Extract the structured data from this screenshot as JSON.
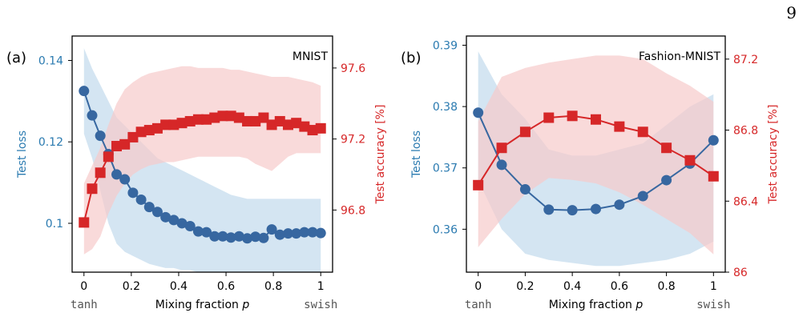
{
  "page_number": "9",
  "colors": {
    "loss": "#3767a0",
    "loss_text": "#2a7ab0",
    "loss_band": "#c6dcee",
    "acc": "#d62728",
    "acc_band": "#f6caca"
  },
  "chart_data": [
    {
      "type": "line",
      "panel_label": "(a)",
      "title": "MNIST",
      "xlabel": "Mixing fraction p",
      "ylabel_left": "Test loss",
      "ylabel_right": "Test accuracy [%]",
      "x_end_labels": {
        "left": "tanh",
        "right": "swish"
      },
      "xlim": [
        -0.05,
        1.05
      ],
      "xticks": [
        0,
        0.2,
        0.4,
        0.6,
        0.8,
        1
      ],
      "xtick_labels": [
        "0",
        "0.2",
        "0.4",
        "0.6",
        "0.8",
        "1"
      ],
      "ylim_left": [
        0.088,
        0.146
      ],
      "yticks_left": [
        0.1,
        0.12,
        0.14
      ],
      "ytick_labels_left": [
        "0.1",
        "0.12",
        "0.14"
      ],
      "ylim_right": [
        96.45,
        97.78
      ],
      "yticks_right": [
        96.8,
        97.2,
        97.6
      ],
      "ytick_labels_right": [
        "96.8",
        "97.2",
        "97.6"
      ],
      "x": [
        0,
        0.0345,
        0.069,
        0.1034,
        0.1379,
        0.1724,
        0.2069,
        0.2414,
        0.2759,
        0.3103,
        0.3448,
        0.3793,
        0.4138,
        0.4483,
        0.4828,
        0.5172,
        0.5517,
        0.5862,
        0.6207,
        0.6552,
        0.6897,
        0.7241,
        0.7586,
        0.7931,
        0.8276,
        0.8621,
        0.8966,
        0.931,
        0.9655,
        1
      ],
      "series": [
        {
          "axis": "left",
          "marker": "circle",
          "values": [
            0.1325,
            0.1265,
            0.1215,
            0.117,
            0.112,
            0.1108,
            0.1075,
            0.1058,
            0.104,
            0.1028,
            0.1015,
            0.1008,
            0.1,
            0.0993,
            0.098,
            0.0978,
            0.0968,
            0.0968,
            0.0965,
            0.0968,
            0.0963,
            0.0967,
            0.0964,
            0.0985,
            0.0972,
            0.0975,
            0.0975,
            0.0978,
            0.0978,
            0.0976
          ],
          "band_lower": [
            0.122,
            0.116,
            0.108,
            0.1,
            0.095,
            0.093,
            0.092,
            0.091,
            0.09,
            0.0895,
            0.089,
            0.089,
            0.0885,
            0.0885,
            0.088,
            0.088,
            0.088,
            0.088,
            0.088,
            0.088,
            0.088,
            0.088,
            0.088,
            0.088,
            0.088,
            0.088,
            0.088,
            0.088,
            0.088,
            0.088
          ],
          "band_upper": [
            0.143,
            0.138,
            0.134,
            0.13,
            0.126,
            0.124,
            0.122,
            0.12,
            0.118,
            0.116,
            0.115,
            0.114,
            0.113,
            0.112,
            0.111,
            0.11,
            0.109,
            0.108,
            0.107,
            0.1065,
            0.106,
            0.106,
            0.106,
            0.106,
            0.106,
            0.106,
            0.106,
            0.106,
            0.106,
            0.106
          ]
        },
        {
          "axis": "right",
          "marker": "square",
          "values": [
            96.73,
            96.92,
            97.01,
            97.1,
            97.16,
            97.17,
            97.21,
            97.24,
            97.25,
            97.26,
            97.28,
            97.28,
            97.29,
            97.3,
            97.31,
            97.31,
            97.32,
            97.33,
            97.33,
            97.32,
            97.3,
            97.3,
            97.32,
            97.28,
            97.3,
            97.28,
            97.29,
            97.27,
            97.25,
            97.26
          ],
          "band_lower": [
            96.55,
            96.58,
            96.65,
            96.78,
            96.88,
            96.95,
            97.0,
            97.03,
            97.05,
            97.06,
            97.07,
            97.07,
            97.08,
            97.09,
            97.1,
            97.1,
            97.1,
            97.1,
            97.1,
            97.1,
            97.09,
            97.06,
            97.04,
            97.02,
            97.06,
            97.1,
            97.12,
            97.12,
            97.12,
            97.12
          ],
          "band_upper": [
            96.95,
            97.05,
            97.15,
            97.28,
            97.4,
            97.48,
            97.52,
            97.55,
            97.57,
            97.58,
            97.59,
            97.6,
            97.61,
            97.61,
            97.6,
            97.6,
            97.6,
            97.6,
            97.59,
            97.59,
            97.58,
            97.57,
            97.56,
            97.55,
            97.55,
            97.55,
            97.54,
            97.53,
            97.52,
            97.5
          ]
        }
      ]
    },
    {
      "type": "line",
      "panel_label": "(b)",
      "title": "Fashion-MNIST",
      "xlabel": "Mixing fraction p",
      "ylabel_left": "Test loss",
      "ylabel_right": "Test accuracy [%]",
      "x_end_labels": {
        "left": "tanh",
        "right": "swish"
      },
      "xlim": [
        -0.05,
        1.05
      ],
      "xticks": [
        0,
        0.2,
        0.4,
        0.6,
        0.8,
        1
      ],
      "xtick_labels": [
        "0",
        "0.2",
        "0.4",
        "0.6",
        "0.8",
        "1"
      ],
      "ylim_left": [
        0.353,
        0.3915
      ],
      "yticks_left": [
        0.36,
        0.37,
        0.38,
        0.39
      ],
      "ytick_labels_left": [
        "0.36",
        "0.37",
        "0.38",
        "0.39"
      ],
      "ylim_right": [
        86.0,
        87.33
      ],
      "yticks_right": [
        86,
        86.4,
        86.8,
        87.2
      ],
      "ytick_labels_right": [
        "86",
        "86.4",
        "86.8",
        "87.2"
      ],
      "x": [
        0,
        0.1,
        0.2,
        0.3,
        0.4,
        0.5,
        0.6,
        0.7,
        0.8,
        0.9,
        1.0
      ],
      "series": [
        {
          "axis": "left",
          "marker": "circle",
          "values": [
            0.379,
            0.3705,
            0.3665,
            0.3632,
            0.3631,
            0.3633,
            0.364,
            0.3654,
            0.368,
            0.3707,
            0.3745
          ],
          "band_lower": [
            0.368,
            0.36,
            0.356,
            0.355,
            0.3545,
            0.354,
            0.354,
            0.3545,
            0.355,
            0.356,
            0.358
          ],
          "band_upper": [
            0.389,
            0.382,
            0.378,
            0.373,
            0.372,
            0.372,
            0.373,
            0.374,
            0.377,
            0.38,
            0.382
          ]
        },
        {
          "axis": "right",
          "marker": "square",
          "values": [
            86.49,
            86.7,
            86.79,
            86.87,
            86.88,
            86.86,
            86.82,
            86.79,
            86.7,
            86.63,
            86.54
          ],
          "band_lower": [
            86.14,
            86.3,
            86.44,
            86.53,
            86.52,
            86.5,
            86.45,
            86.38,
            86.3,
            86.22,
            86.1
          ],
          "band_upper": [
            86.85,
            87.1,
            87.15,
            87.18,
            87.2,
            87.22,
            87.22,
            87.2,
            87.12,
            87.05,
            86.96
          ]
        }
      ]
    }
  ]
}
